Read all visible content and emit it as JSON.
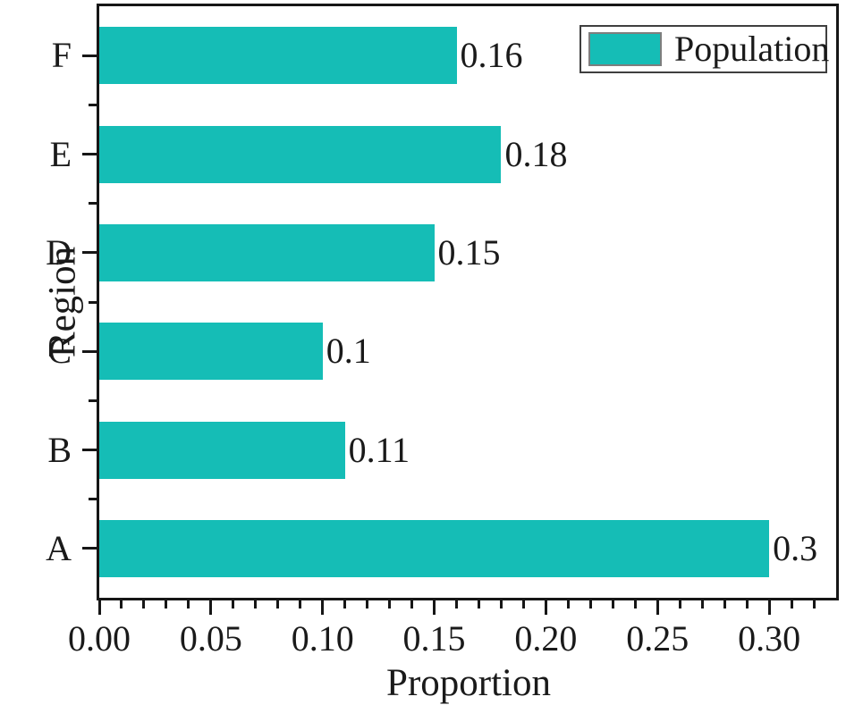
{
  "chart_data": {
    "type": "bar",
    "orientation": "horizontal",
    "title": "",
    "xlabel": "Proportion",
    "ylabel": "Region",
    "categories": [
      "A",
      "B",
      "C",
      "D",
      "E",
      "F"
    ],
    "values": [
      0.3,
      0.11,
      0.1,
      0.15,
      0.18,
      0.16
    ],
    "value_labels": [
      "0.3",
      "0.11",
      "0.1",
      "0.15",
      "0.18",
      "0.16"
    ],
    "row_order_top_to_bottom": [
      "F",
      "E",
      "D",
      "C",
      "B",
      "A"
    ],
    "xlim": [
      0,
      0.33
    ],
    "x_major_tick_values": [
      0,
      0.05,
      0.1,
      0.15,
      0.2,
      0.25,
      0.3
    ],
    "x_major_tick_labels": [
      "0.00",
      "0.05",
      "0.10",
      "0.15",
      "0.20",
      "0.25",
      "0.30"
    ],
    "x_minor_tick_step": 0.01,
    "grid": false,
    "frame": "full-box",
    "legend": {
      "label": "Population",
      "position": "top-right"
    },
    "bar_color": "#15bdb6",
    "legend_swatch_color": "#15bdb6",
    "axis_color": "#161616",
    "text_color": "#1a1a1a"
  }
}
